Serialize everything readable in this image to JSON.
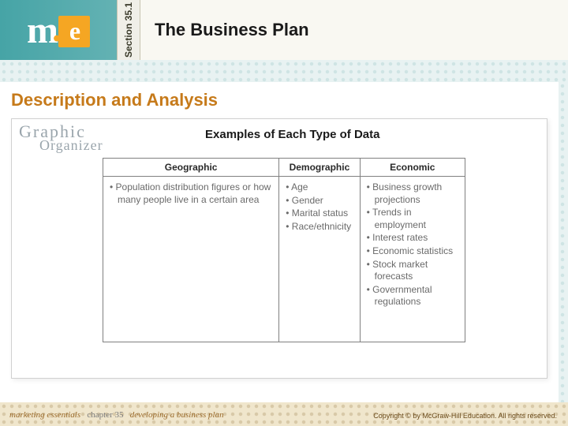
{
  "header": {
    "section_label": "Section 35.1",
    "title": "The Business Plan"
  },
  "subtitle": "Description and Analysis",
  "graphic_organizer": {
    "line1": "Graphic",
    "line2": "Organizer"
  },
  "table": {
    "caption": "Examples of Each Type of Data",
    "columns": [
      "Geographic",
      "Demographic",
      "Economic"
    ],
    "rows": [
      [
        [
          "Population distribution figures or how many people live in a certain area"
        ],
        [
          "Age",
          "Gender",
          "Marital status",
          "Race/ethnicity"
        ],
        [
          "Business growth projections",
          "Trends in employment",
          "Interest rates",
          "Economic statistics",
          "Stock market forecasts",
          "Governmental regulations"
        ]
      ]
    ]
  },
  "footer": {
    "left_italic": "marketing essentials",
    "left_mid": "chapter 35",
    "left_right": "developing a business plan",
    "copyright": "Copyright © by McGraw-Hill Education. All rights reserved."
  },
  "colors": {
    "accent_orange": "#c67a1a",
    "header_teal": "#46a4a6"
  }
}
